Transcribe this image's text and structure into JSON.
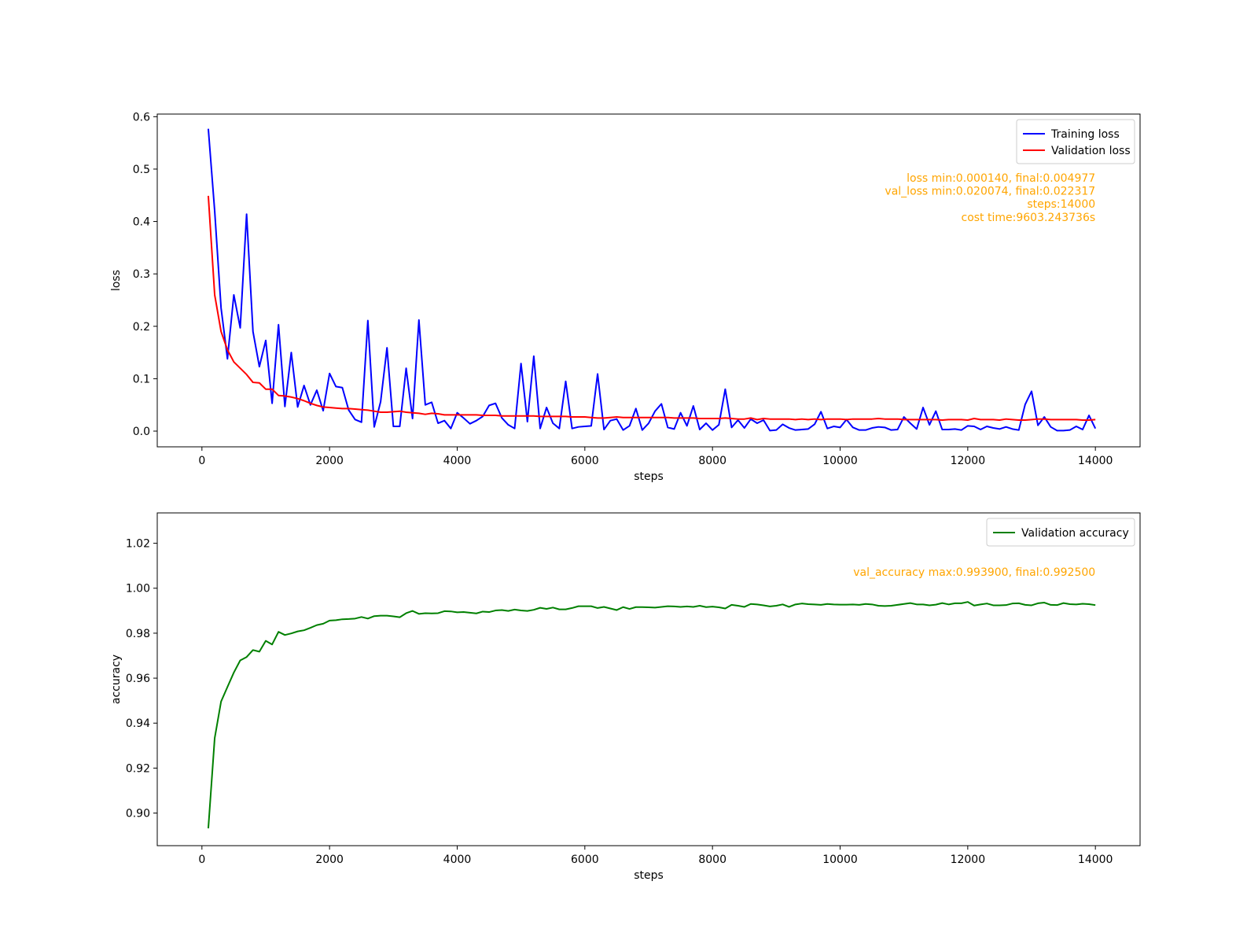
{
  "chart_data": [
    {
      "type": "line",
      "xlabel": "steps",
      "ylabel": "loss",
      "xlim": [
        -700,
        14700
      ],
      "ylim": [
        -0.03,
        0.605
      ],
      "xticks": [
        0,
        2000,
        4000,
        6000,
        8000,
        10000,
        12000,
        14000
      ],
      "yticks": [
        0.0,
        0.1,
        0.2,
        0.3,
        0.4,
        0.5,
        0.6
      ],
      "ytick_decimals": 1,
      "legend": "top-right",
      "grid": false,
      "x": [
        100,
        200,
        300,
        400,
        500,
        600,
        700,
        800,
        900,
        1000,
        1100,
        1200,
        1300,
        1400,
        1500,
        1600,
        1700,
        1800,
        1900,
        2000,
        2100,
        2200,
        2300,
        2400,
        2500,
        2600,
        2700,
        2800,
        2900,
        3000,
        3100,
        3200,
        3300,
        3400,
        3500,
        3600,
        3700,
        3800,
        3900,
        4000,
        4100,
        4200,
        4300,
        4400,
        4500,
        4600,
        4700,
        4800,
        4900,
        5000,
        5100,
        5200,
        5300,
        5400,
        5500,
        5600,
        5700,
        5800,
        5900,
        6000,
        6100,
        6200,
        6300,
        6400,
        6500,
        6600,
        6700,
        6800,
        6900,
        7000,
        7100,
        7200,
        7300,
        7400,
        7500,
        7600,
        7700,
        7800,
        7900,
        8000,
        8100,
        8200,
        8300,
        8400,
        8500,
        8600,
        8700,
        8800,
        8900,
        9000,
        9100,
        9200,
        9300,
        9400,
        9500,
        9600,
        9700,
        9800,
        9900,
        10000,
        10100,
        10200,
        10300,
        10400,
        10500,
        10600,
        10700,
        10800,
        10900,
        11000,
        11100,
        11200,
        11300,
        11400,
        11500,
        11600,
        11700,
        11800,
        11900,
        12000,
        12100,
        12200,
        12300,
        12400,
        12500,
        12600,
        12700,
        12800,
        12900,
        13000,
        13100,
        13200,
        13300,
        13400,
        13500,
        13600,
        13700,
        13800,
        13900,
        14000
      ],
      "series": [
        {
          "name": "Training loss",
          "color": "#0000ff",
          "values": [
            0.577,
            0.42,
            0.235,
            0.138,
            0.26,
            0.197,
            0.414,
            0.19,
            0.123,
            0.173,
            0.053,
            0.203,
            0.047,
            0.15,
            0.046,
            0.087,
            0.05,
            0.078,
            0.039,
            0.11,
            0.085,
            0.083,
            0.04,
            0.022,
            0.017,
            0.211,
            0.008,
            0.056,
            0.159,
            0.009,
            0.009,
            0.12,
            0.024,
            0.212,
            0.05,
            0.055,
            0.015,
            0.02,
            0.005,
            0.035,
            0.025,
            0.014,
            0.02,
            0.028,
            0.049,
            0.053,
            0.025,
            0.012,
            0.005,
            0.129,
            0.018,
            0.143,
            0.005,
            0.045,
            0.015,
            0.005,
            0.095,
            0.005,
            0.008,
            0.009,
            0.01,
            0.109,
            0.003,
            0.02,
            0.023,
            0.002,
            0.01,
            0.043,
            0.002,
            0.015,
            0.038,
            0.052,
            0.007,
            0.004,
            0.035,
            0.01,
            0.048,
            0.003,
            0.015,
            0.002,
            0.012,
            0.08,
            0.007,
            0.021,
            0.006,
            0.023,
            0.015,
            0.021,
            0.001,
            0.002,
            0.013,
            0.006,
            0.002,
            0.003,
            0.004,
            0.013,
            0.037,
            0.005,
            0.009,
            0.007,
            0.022,
            0.007,
            0.002,
            0.002,
            0.006,
            0.008,
            0.007,
            0.002,
            0.003,
            0.027,
            0.015,
            0.004,
            0.045,
            0.012,
            0.038,
            0.003,
            0.003,
            0.004,
            0.002,
            0.01,
            0.009,
            0.003,
            0.009,
            0.006,
            0.004,
            0.008,
            0.004,
            0.002,
            0.051,
            0.076,
            0.011,
            0.027,
            0.008,
            0.001,
            0.001,
            0.002,
            0.009,
            0.003,
            0.03,
            0.005
          ]
        },
        {
          "name": "Validation loss",
          "color": "#ff0000",
          "values": [
            0.449,
            0.26,
            0.19,
            0.155,
            0.132,
            0.12,
            0.108,
            0.093,
            0.092,
            0.08,
            0.08,
            0.068,
            0.067,
            0.065,
            0.062,
            0.058,
            0.053,
            0.049,
            0.046,
            0.045,
            0.044,
            0.043,
            0.043,
            0.042,
            0.041,
            0.04,
            0.038,
            0.036,
            0.036,
            0.037,
            0.038,
            0.036,
            0.035,
            0.034,
            0.032,
            0.034,
            0.033,
            0.031,
            0.031,
            0.031,
            0.031,
            0.031,
            0.031,
            0.03,
            0.03,
            0.03,
            0.029,
            0.029,
            0.029,
            0.029,
            0.029,
            0.029,
            0.028,
            0.028,
            0.028,
            0.028,
            0.028,
            0.027,
            0.027,
            0.027,
            0.026,
            0.025,
            0.025,
            0.026,
            0.027,
            0.026,
            0.026,
            0.026,
            0.026,
            0.026,
            0.026,
            0.026,
            0.026,
            0.025,
            0.025,
            0.025,
            0.025,
            0.024,
            0.024,
            0.024,
            0.024,
            0.025,
            0.024,
            0.023,
            0.023,
            0.025,
            0.022,
            0.024,
            0.023,
            0.023,
            0.023,
            0.023,
            0.022,
            0.023,
            0.022,
            0.023,
            0.022,
            0.023,
            0.023,
            0.023,
            0.022,
            0.023,
            0.023,
            0.023,
            0.023,
            0.024,
            0.023,
            0.023,
            0.023,
            0.022,
            0.022,
            0.022,
            0.022,
            0.022,
            0.022,
            0.021,
            0.022,
            0.022,
            0.022,
            0.021,
            0.024,
            0.022,
            0.022,
            0.022,
            0.021,
            0.023,
            0.022,
            0.021,
            0.021,
            0.022,
            0.023,
            0.023,
            0.022,
            0.022,
            0.022,
            0.022,
            0.022,
            0.021,
            0.021,
            0.022
          ]
        }
      ],
      "annotations": [
        "loss min:0.000140, final:0.004977",
        "val_loss min:0.020074, final:0.022317",
        "steps:14000",
        "cost time:9603.243736s"
      ],
      "annotation_color": "#ffa500"
    },
    {
      "type": "line",
      "xlabel": "steps",
      "ylabel": "accuracy",
      "xlim": [
        -700,
        14700
      ],
      "ylim": [
        0.8855,
        1.0335
      ],
      "xticks": [
        0,
        2000,
        4000,
        6000,
        8000,
        10000,
        12000,
        14000
      ],
      "yticks": [
        0.9,
        0.92,
        0.94,
        0.96,
        0.98,
        1.0,
        1.02
      ],
      "ytick_decimals": 2,
      "legend": "top-right",
      "grid": false,
      "x": [
        100,
        200,
        300,
        400,
        500,
        600,
        700,
        800,
        900,
        1000,
        1100,
        1200,
        1300,
        1400,
        1500,
        1600,
        1700,
        1800,
        1900,
        2000,
        2100,
        2200,
        2300,
        2400,
        2500,
        2600,
        2700,
        2800,
        2900,
        3000,
        3100,
        3200,
        3300,
        3400,
        3500,
        3600,
        3700,
        3800,
        3900,
        4000,
        4100,
        4200,
        4300,
        4400,
        4500,
        4600,
        4700,
        4800,
        4900,
        5000,
        5100,
        5200,
        5300,
        5400,
        5500,
        5600,
        5700,
        5800,
        5900,
        6000,
        6100,
        6200,
        6300,
        6400,
        6500,
        6600,
        6700,
        6800,
        6900,
        7000,
        7100,
        7200,
        7300,
        7400,
        7500,
        7600,
        7700,
        7800,
        7900,
        8000,
        8100,
        8200,
        8300,
        8400,
        8500,
        8600,
        8700,
        8800,
        8900,
        9000,
        9100,
        9200,
        9300,
        9400,
        9500,
        9600,
        9700,
        9800,
        9900,
        10000,
        10100,
        10200,
        10300,
        10400,
        10500,
        10600,
        10700,
        10800,
        10900,
        11000,
        11100,
        11200,
        11300,
        11400,
        11500,
        11600,
        11700,
        11800,
        11900,
        12000,
        12100,
        12200,
        12300,
        12400,
        12500,
        12600,
        12700,
        12800,
        12900,
        13000,
        13100,
        13200,
        13300,
        13400,
        13500,
        13600,
        13700,
        13800,
        13900,
        14000
      ],
      "series": [
        {
          "name": "Validation accuracy",
          "color": "#008000",
          "values": [
            0.8932,
            0.9333,
            0.9496,
            0.9561,
            0.9625,
            0.9679,
            0.9694,
            0.9725,
            0.9718,
            0.9766,
            0.975,
            0.9806,
            0.9792,
            0.9799,
            0.9808,
            0.9813,
            0.9824,
            0.9836,
            0.9842,
            0.9856,
            0.9858,
            0.9862,
            0.9863,
            0.9865,
            0.9872,
            0.9865,
            0.9876,
            0.9878,
            0.9878,
            0.9875,
            0.9871,
            0.9889,
            0.9899,
            0.9886,
            0.9889,
            0.9888,
            0.9889,
            0.9898,
            0.9897,
            0.9893,
            0.9894,
            0.9891,
            0.9888,
            0.9896,
            0.9894,
            0.9901,
            0.9903,
            0.9899,
            0.9905,
            0.9901,
            0.9899,
            0.9904,
            0.9913,
            0.9908,
            0.9914,
            0.9906,
            0.9906,
            0.9912,
            0.992,
            0.992,
            0.992,
            0.9912,
            0.9917,
            0.991,
            0.9903,
            0.9916,
            0.9908,
            0.9916,
            0.9916,
            0.9915,
            0.9914,
            0.9917,
            0.992,
            0.9919,
            0.9917,
            0.9919,
            0.9917,
            0.9922,
            0.9916,
            0.9918,
            0.9915,
            0.991,
            0.9926,
            0.9922,
            0.9917,
            0.993,
            0.9928,
            0.9924,
            0.9919,
            0.9922,
            0.9928,
            0.9917,
            0.9928,
            0.9932,
            0.9929,
            0.9928,
            0.9926,
            0.993,
            0.9928,
            0.9927,
            0.9927,
            0.9928,
            0.9926,
            0.993,
            0.9928,
            0.9922,
            0.9921,
            0.9922,
            0.9926,
            0.993,
            0.9934,
            0.9928,
            0.9928,
            0.9924,
            0.9927,
            0.9934,
            0.9928,
            0.9933,
            0.9933,
            0.9939,
            0.9923,
            0.9928,
            0.9932,
            0.9924,
            0.9924,
            0.9925,
            0.9932,
            0.9933,
            0.9926,
            0.9924,
            0.9933,
            0.9936,
            0.9926,
            0.9925,
            0.9934,
            0.9929,
            0.9928,
            0.9931,
            0.9929,
            0.9925
          ]
        }
      ],
      "annotations": [
        "val_accuracy max:0.993900, final:0.992500"
      ],
      "annotation_color": "#ffa500"
    }
  ]
}
